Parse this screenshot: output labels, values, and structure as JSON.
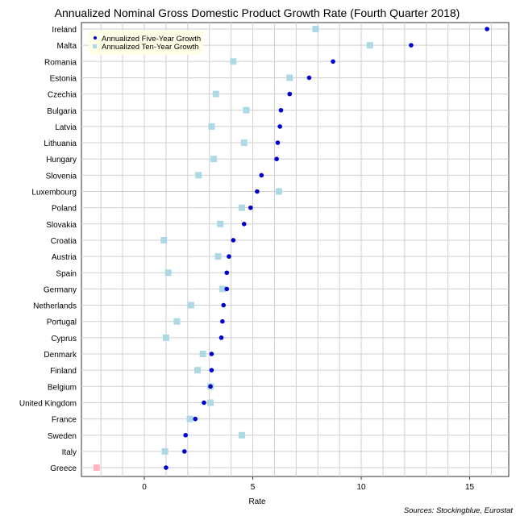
{
  "chart_data": {
    "type": "scatter",
    "title": "Annualized Nominal Gross Domestic Product Growth Rate (Fourth Quarter 2018)",
    "xlabel": "Rate",
    "source": "Sources: Stockingblue, Eurostat",
    "xlim": [
      -2.9,
      16.8
    ],
    "xticks": [
      0,
      5,
      10,
      15
    ],
    "grid": true,
    "legend_position": "top-left",
    "categories": [
      "Ireland",
      "Malta",
      "Romania",
      "Estonia",
      "Czechia",
      "Bulgaria",
      "Latvia",
      "Lithuania",
      "Hungary",
      "Slovenia",
      "Luxembourg",
      "Poland",
      "Slovakia",
      "Croatia",
      "Austria",
      "Spain",
      "Germany",
      "Netherlands",
      "Portugal",
      "Cyprus",
      "Denmark",
      "Finland",
      "Belgium",
      "United Kingdom",
      "France",
      "Sweden",
      "Italy",
      "Greece"
    ],
    "series": [
      {
        "name": "Annualized Five-Year Growth",
        "marker": "circle",
        "color": "#0000cc",
        "values": [
          15.8,
          12.3,
          8.7,
          7.6,
          6.7,
          6.3,
          6.25,
          6.15,
          6.1,
          5.4,
          5.2,
          4.9,
          4.6,
          4.1,
          3.9,
          3.8,
          3.8,
          3.65,
          3.6,
          3.55,
          3.1,
          3.1,
          3.05,
          2.75,
          2.35,
          1.9,
          1.85,
          1.0
        ]
      },
      {
        "name": "Annualized Ten-Year Growth",
        "marker": "square",
        "color": "#add8e6",
        "negative_color": "#ffb6c1",
        "values": [
          7.9,
          10.4,
          4.1,
          6.7,
          3.3,
          4.7,
          3.1,
          4.6,
          3.2,
          2.5,
          6.2,
          4.5,
          3.5,
          0.9,
          3.4,
          1.1,
          3.6,
          2.15,
          1.5,
          1.0,
          2.7,
          2.45,
          3.05,
          3.05,
          2.1,
          4.5,
          0.95,
          -2.2
        ]
      }
    ]
  }
}
